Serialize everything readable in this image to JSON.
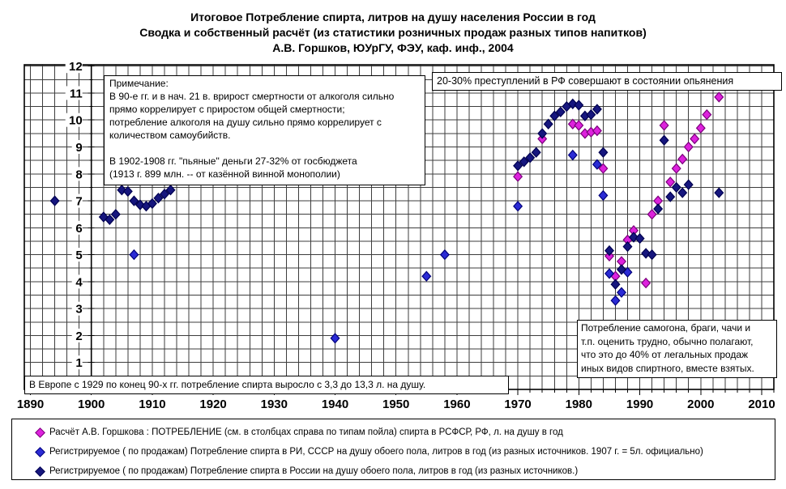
{
  "title": {
    "line1": "Итоговое Потребление спирта, литров на душу населения России в год",
    "line2": "Сводка и собственный расчёт (из статистики розничных продаж разных типов напитков)",
    "line3": "А.В. Горшков, ЮУрГУ, ФЭУ, каф. инф., 2004"
  },
  "annotations": {
    "note": "Примечание:\nВ 90-е гг. и в нач. 21 в. врирост смертности от алкоголя сильно\nпрямо коррелирует с приростом общей смертности;\nпотребление алкоголя на душу сильно прямо коррелирует с\nколичеством самоубийств.\n\nВ 1902-1908 гг. \"пьяные\" деньги 27-32% от госбюджета\n(1913 г. 899 млн. -- от казённой винной монополии)",
    "crime": "20-30% преступлений в РФ совершают в состоянии опьянения",
    "samogon": "Потребление самогона, браги, чачи и\nт.п. оценить трудно, обычно полагают,\nчто это до 40% от легальных продаж\nиных видов спиртного, вместе взятых.",
    "europe": "В Европе с 1929 по конец 90-х гг. потребление спирта выросло с 3,3 до 13,3 л. на душу."
  },
  "legend": {
    "items": [
      {
        "label": "Расчёт А.В. Горшкова : ПОТРЕБЛЕНИЕ (см. в столбцах справа по типам пойла) спирта в РСФСР, РФ, л. на душу в год"
      },
      {
        "label": "Регистрируемое ( по продажам) Потребление спирта в РИ, СССР на душу обоего пола, литров в год (из разных источников. 1907 г. = 5л. официально)"
      },
      {
        "label": "Регистрируемое ( по продажам) Потребление спирта в России на душу обоего пола, литров в год (из разных источников.)"
      }
    ]
  },
  "chart_data": {
    "type": "scatter",
    "title": "Итоговое Потребление спирта, литров на душу населения России в год",
    "xlabel": "",
    "ylabel": "",
    "xlim": [
      1889,
      2012
    ],
    "ylim": [
      0,
      12.05
    ],
    "x_ticks": [
      1890,
      1900,
      1910,
      1920,
      1930,
      1940,
      1950,
      1960,
      1970,
      1980,
      1990,
      2000,
      2010
    ],
    "y_ticks": [
      1,
      2,
      3,
      4,
      5,
      6,
      7,
      8,
      9,
      10,
      11,
      12
    ],
    "grid": {
      "x_step_years": 2,
      "y_step": 0.5,
      "on": true
    },
    "y_axis_cross_year": 1900,
    "legend_position": "bottom",
    "series": [
      {
        "name": "Расчёт А.В. Горшкова, РСФСР/РФ",
        "marker": {
          "shape": "diamond",
          "fill": "#DD22DD",
          "stroke": "#7A007A"
        },
        "points": [
          [
            1970,
            7.9
          ],
          [
            1974,
            9.3
          ],
          [
            1979,
            9.85
          ],
          [
            1980,
            9.8
          ],
          [
            1981,
            9.5
          ],
          [
            1982,
            9.55
          ],
          [
            1983,
            9.6
          ],
          [
            1984,
            8.2
          ],
          [
            1985,
            4.95
          ],
          [
            1986,
            4.2
          ],
          [
            1987,
            4.75
          ],
          [
            1988,
            5.55
          ],
          [
            1989,
            5.9
          ],
          [
            1991,
            3.95
          ],
          [
            1992,
            6.5
          ],
          [
            1993,
            7.0
          ],
          [
            1994,
            9.8
          ],
          [
            1995,
            7.7
          ],
          [
            1996,
            8.2
          ],
          [
            1997,
            8.55
          ],
          [
            1998,
            9.0
          ],
          [
            1999,
            9.3
          ],
          [
            2000,
            9.7
          ],
          [
            2001,
            10.2
          ],
          [
            2003,
            10.85
          ]
        ]
      },
      {
        "name": "Регистрируемое, РИ/СССР",
        "marker": {
          "shape": "diamond",
          "fill": "#2B2BD5",
          "stroke": "#00007A"
        },
        "points": [
          [
            1907,
            5.0
          ],
          [
            1940,
            1.9
          ],
          [
            1955,
            4.2
          ],
          [
            1958,
            5.0
          ],
          [
            1970,
            6.8
          ],
          [
            1979,
            8.7
          ],
          [
            1983,
            8.35
          ],
          [
            1984,
            7.2
          ],
          [
            1985,
            4.3
          ],
          [
            1986,
            3.3
          ],
          [
            1987,
            3.6
          ],
          [
            1988,
            4.35
          ]
        ]
      },
      {
        "name": "Регистрируемое, Россия",
        "marker": {
          "shape": "diamond",
          "fill": "#16167E",
          "stroke": "#000050"
        },
        "points": [
          [
            1894,
            7.0
          ],
          [
            1902,
            6.4
          ],
          [
            1903,
            6.3
          ],
          [
            1904,
            6.5
          ],
          [
            1905,
            7.4
          ],
          [
            1906,
            7.35
          ],
          [
            1907,
            7.0
          ],
          [
            1908,
            6.85
          ],
          [
            1909,
            6.8
          ],
          [
            1910,
            6.9
          ],
          [
            1911,
            7.1
          ],
          [
            1912,
            7.25
          ],
          [
            1913,
            7.4
          ],
          [
            1970,
            8.3
          ],
          [
            1971,
            8.45
          ],
          [
            1972,
            8.6
          ],
          [
            1973,
            8.8
          ],
          [
            1974,
            9.5
          ],
          [
            1975,
            9.85
          ],
          [
            1976,
            10.15
          ],
          [
            1977,
            10.3
          ],
          [
            1978,
            10.5
          ],
          [
            1979,
            10.6
          ],
          [
            1980,
            10.55
          ],
          [
            1981,
            10.15
          ],
          [
            1982,
            10.2
          ],
          [
            1983,
            10.4
          ],
          [
            1984,
            8.8
          ],
          [
            1985,
            5.15
          ],
          [
            1986,
            3.9
          ],
          [
            1987,
            4.45
          ],
          [
            1988,
            5.3
          ],
          [
            1989,
            5.65
          ],
          [
            1990,
            5.6
          ],
          [
            1991,
            5.05
          ],
          [
            1992,
            5.0
          ],
          [
            1993,
            6.7
          ],
          [
            1994,
            9.25
          ],
          [
            1995,
            7.15
          ],
          [
            1996,
            7.5
          ],
          [
            1997,
            7.3
          ],
          [
            1998,
            7.6
          ],
          [
            2003,
            7.3
          ]
        ]
      }
    ]
  }
}
